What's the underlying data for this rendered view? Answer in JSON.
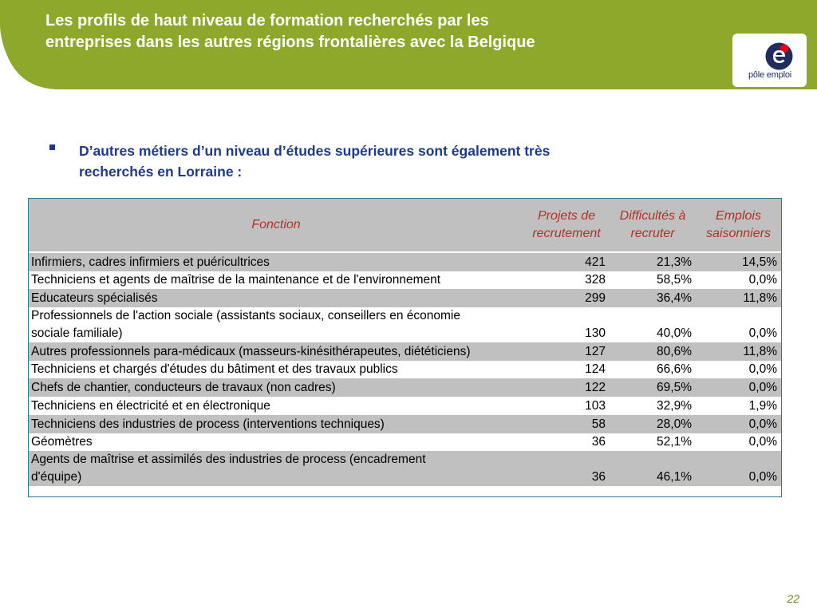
{
  "header": {
    "title_line1": "Les profils de haut niveau de formation recherchés par les",
    "title_line2": "entreprises dans les autres régions frontalières avec la Belgique",
    "band_color": "#8ea82b",
    "logo_text": "pôle emploi",
    "logo_icon": "pole-emploi-logo-icon"
  },
  "bullet": {
    "line1": "D’autres métiers d’un niveau d’études supérieures sont également très",
    "line2": "recherchés en Lorraine :"
  },
  "table": {
    "headers": {
      "fonction": "Fonction",
      "projets_l1": "Projets de",
      "projets_l2": "recrutement",
      "difficultes_l1": "Difficultés à",
      "difficultes_l2": "recruter",
      "emplois_l1": "Emplois",
      "emplois_l2": "saisonniers"
    },
    "rows": [
      {
        "fonction": "Infirmiers, cadres infirmiers et puéricultrices",
        "fonction2": "",
        "projets": "421",
        "difficultes": "21,3%",
        "saisonniers": "14,5%"
      },
      {
        "fonction": "Techniciens et agents de maîtrise de la maintenance et de l'environnement",
        "fonction2": "",
        "projets": "328",
        "difficultes": "58,5%",
        "saisonniers": "0,0%"
      },
      {
        "fonction": "Educateurs spécialisés",
        "fonction2": "",
        "projets": "299",
        "difficultes": "36,4%",
        "saisonniers": "11,8%"
      },
      {
        "fonction": "Professionnels de l'action sociale (assistants sociaux, conseillers en économie",
        "fonction2": "sociale familiale)",
        "projets": "130",
        "difficultes": "40,0%",
        "saisonniers": "0,0%"
      },
      {
        "fonction": "Autres professionnels para-médicaux (masseurs-kinésithérapeutes, diététiciens)",
        "fonction2": "",
        "projets": "127",
        "difficultes": "80,6%",
        "saisonniers": "11,8%"
      },
      {
        "fonction": "Techniciens et chargés d'études du bâtiment et des travaux publics",
        "fonction2": "",
        "projets": "124",
        "difficultes": "66,6%",
        "saisonniers": "0,0%"
      },
      {
        "fonction": "Chefs de chantier, conducteurs de travaux (non cadres)",
        "fonction2": "",
        "projets": "122",
        "difficultes": "69,5%",
        "saisonniers": "0,0%"
      },
      {
        "fonction": "Techniciens en électricité et en électronique",
        "fonction2": "",
        "projets": "103",
        "difficultes": "32,9%",
        "saisonniers": "1,9%"
      },
      {
        "fonction": "Techniciens des industries de process (interventions techniques)",
        "fonction2": "",
        "projets": "58",
        "difficultes": "28,0%",
        "saisonniers": "0,0%"
      },
      {
        "fonction": "Géomètres",
        "fonction2": "",
        "projets": "36",
        "difficultes": "52,1%",
        "saisonniers": "0,0%"
      },
      {
        "fonction": "Agents de maîtrise et assimilés des industries de process (encadrement",
        "fonction2": "d'équipe)",
        "projets": "36",
        "difficultes": "46,1%",
        "saisonniers": "0,0%"
      }
    ]
  },
  "footer": {
    "page_number": "22"
  }
}
